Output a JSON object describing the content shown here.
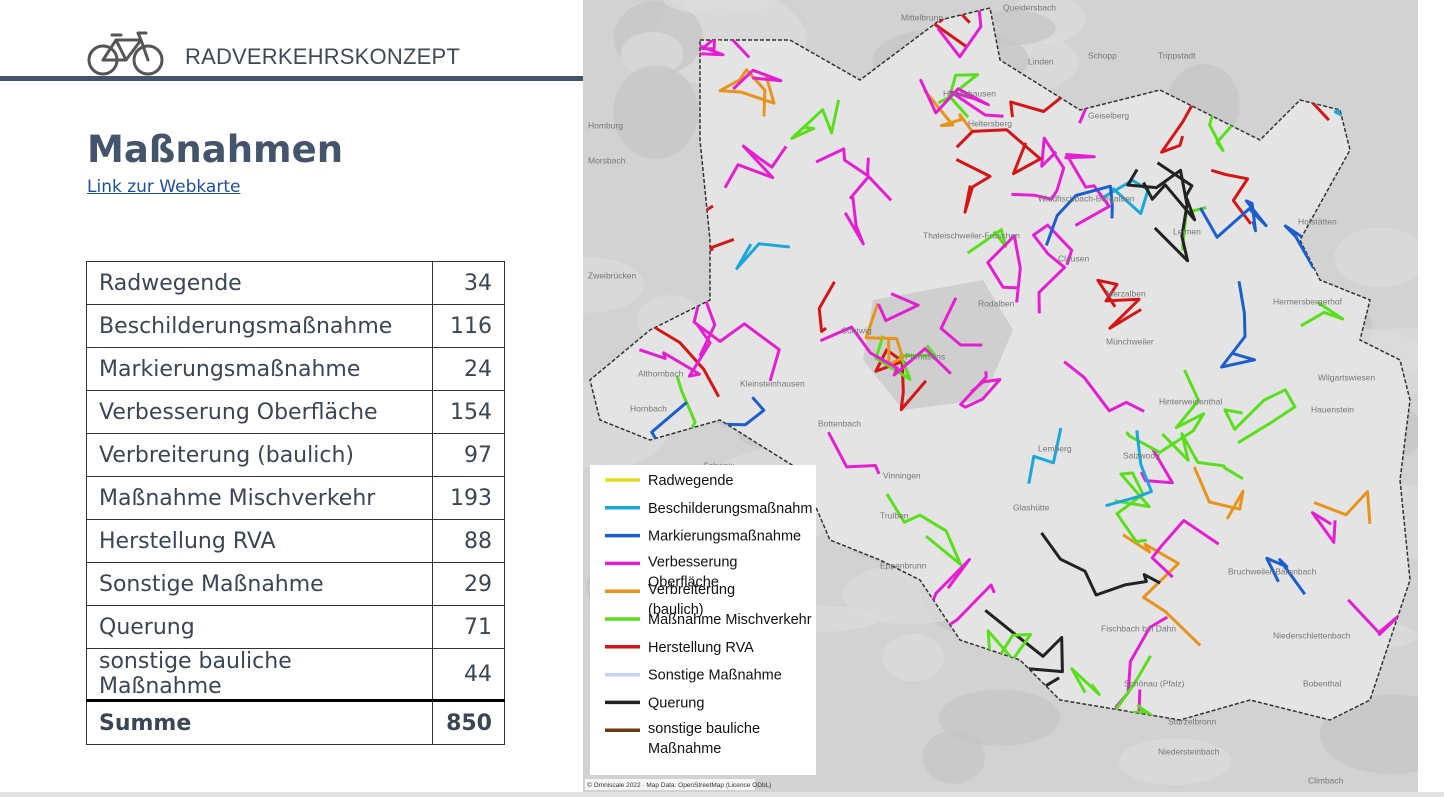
{
  "header": {
    "title": "RADVERKEHRSKONZEPT"
  },
  "heading": "Maßnahmen",
  "link": "Link zur Webkarte",
  "table": {
    "rows": [
      [
        "Radwegende",
        34
      ],
      [
        "Beschilderungsmaßnahme",
        116
      ],
      [
        "Markierungsmaßnahme",
        24
      ],
      [
        "Verbesserung Oberfläche",
        154
      ],
      [
        "Verbreiterung (baulich)",
        97
      ],
      [
        "Maßnahme Mischverkehr",
        193
      ],
      [
        "Herstellung RVA",
        88
      ],
      [
        "Sonstige Maßnahme",
        29
      ],
      [
        "Querung",
        71
      ],
      [
        "sonstige bauliche Maßnahme",
        44
      ]
    ],
    "total": [
      "Summe",
      850
    ]
  },
  "map": {
    "legend": [
      {
        "label": "Radwegende",
        "color": "#e3e01c"
      },
      {
        "label": "Beschilderungsmaßnahm",
        "color": "#1aa8d8"
      },
      {
        "label": "Markierungsmaßnahme",
        "color": "#1c5fcc"
      },
      {
        "label": "Verbesserung Oberfläche",
        "color": "#e41fd2"
      },
      {
        "label": "Verbreiterung (baulich)",
        "color": "#e8941c"
      },
      {
        "label": "Maßnahme Mischverkehr",
        "color": "#5adf1c"
      },
      {
        "label": "Herstellung RVA",
        "color": "#d41616"
      },
      {
        "label": "Sonstige Maßnahme",
        "color": "#c6d2ee"
      },
      {
        "label": "Querung",
        "color": "#222222"
      },
      {
        "label": "sonstige bauliche Maßnahme",
        "color": "#6b3a10"
      }
    ],
    "places": [
      "Mittelbrunn",
      "Queidersbach",
      "Linden",
      "Schopp",
      "Trippstadt",
      "Homburg",
      "Morsbach",
      "Zweibrücken",
      "Hettenhausen",
      "Heltersberg",
      "Geiselberg",
      "Waldfischbach-Burgalben",
      "Hofstätten",
      "Leimen",
      "Thaleischweiler-Fröschen",
      "Rodalben",
      "Clausen",
      "Merzalben",
      "Hermersbergerhof",
      "Contwig",
      "Pirmasens",
      "Münchweiler",
      "Kleinsteinhausen",
      "Althornbach",
      "Hornbach",
      "Bottenbach",
      "Hinterweidenthal",
      "Wilgartswiesen",
      "Hauenstein",
      "Lemberg",
      "Salzwoog",
      "Schweix",
      "Vinningen",
      "Trulben",
      "Glashütte",
      "Eppenbrunn",
      "Bruchweiler-Bärenbach",
      "Fischbach bei Dahn",
      "Niederschlettenbach",
      "Schönau (Pfalz)",
      "Bobenthal",
      "Sturzelbronn",
      "Niedersteinbach",
      "Climbach"
    ],
    "attribution": "© Omniscale 2022 · Map Data: OpenStreetMap (Licence ODbL)"
  }
}
